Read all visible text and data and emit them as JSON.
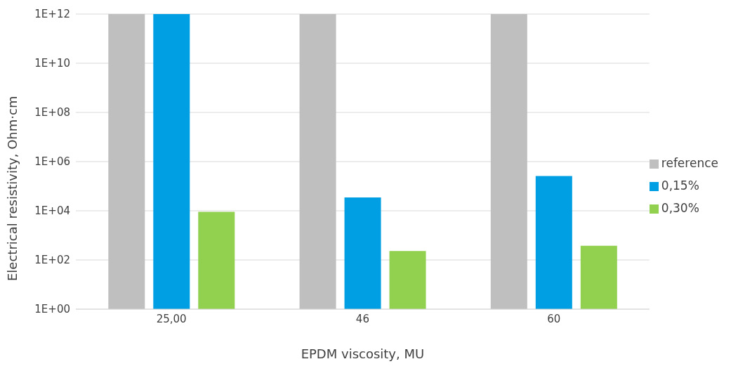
{
  "chart_data": {
    "type": "bar",
    "xlabel": "EPDM viscosity, MU",
    "ylabel": "Electrical resistivity, Ohm·cm",
    "categories": [
      "25,00",
      "46",
      "60"
    ],
    "series": [
      {
        "name": "reference",
        "color": "#bfbfbf",
        "values": [
          1000000000000.0,
          1000000000000.0,
          1000000000000.0
        ]
      },
      {
        "name": "0,15%",
        "color": "#009fe3",
        "values": [
          1000000000000.0,
          35000,
          260000
        ]
      },
      {
        "name": "0,30%",
        "color": "#92d050",
        "values": [
          9000,
          230,
          380
        ]
      }
    ],
    "log": true,
    "ylim": [
      1,
      1000000000000.0
    ],
    "yticks": [
      {
        "value": 1,
        "label": "1E+00"
      },
      {
        "value": 100,
        "label": "1E+02"
      },
      {
        "value": 10000,
        "label": "1E+04"
      },
      {
        "value": 1000000,
        "label": "1E+06"
      },
      {
        "value": 100000000,
        "label": "1E+08"
      },
      {
        "value": 10000000000,
        "label": "1E+10"
      },
      {
        "value": 1000000000000,
        "label": "1E+12"
      }
    ],
    "grid": "y",
    "legend": "right"
  }
}
